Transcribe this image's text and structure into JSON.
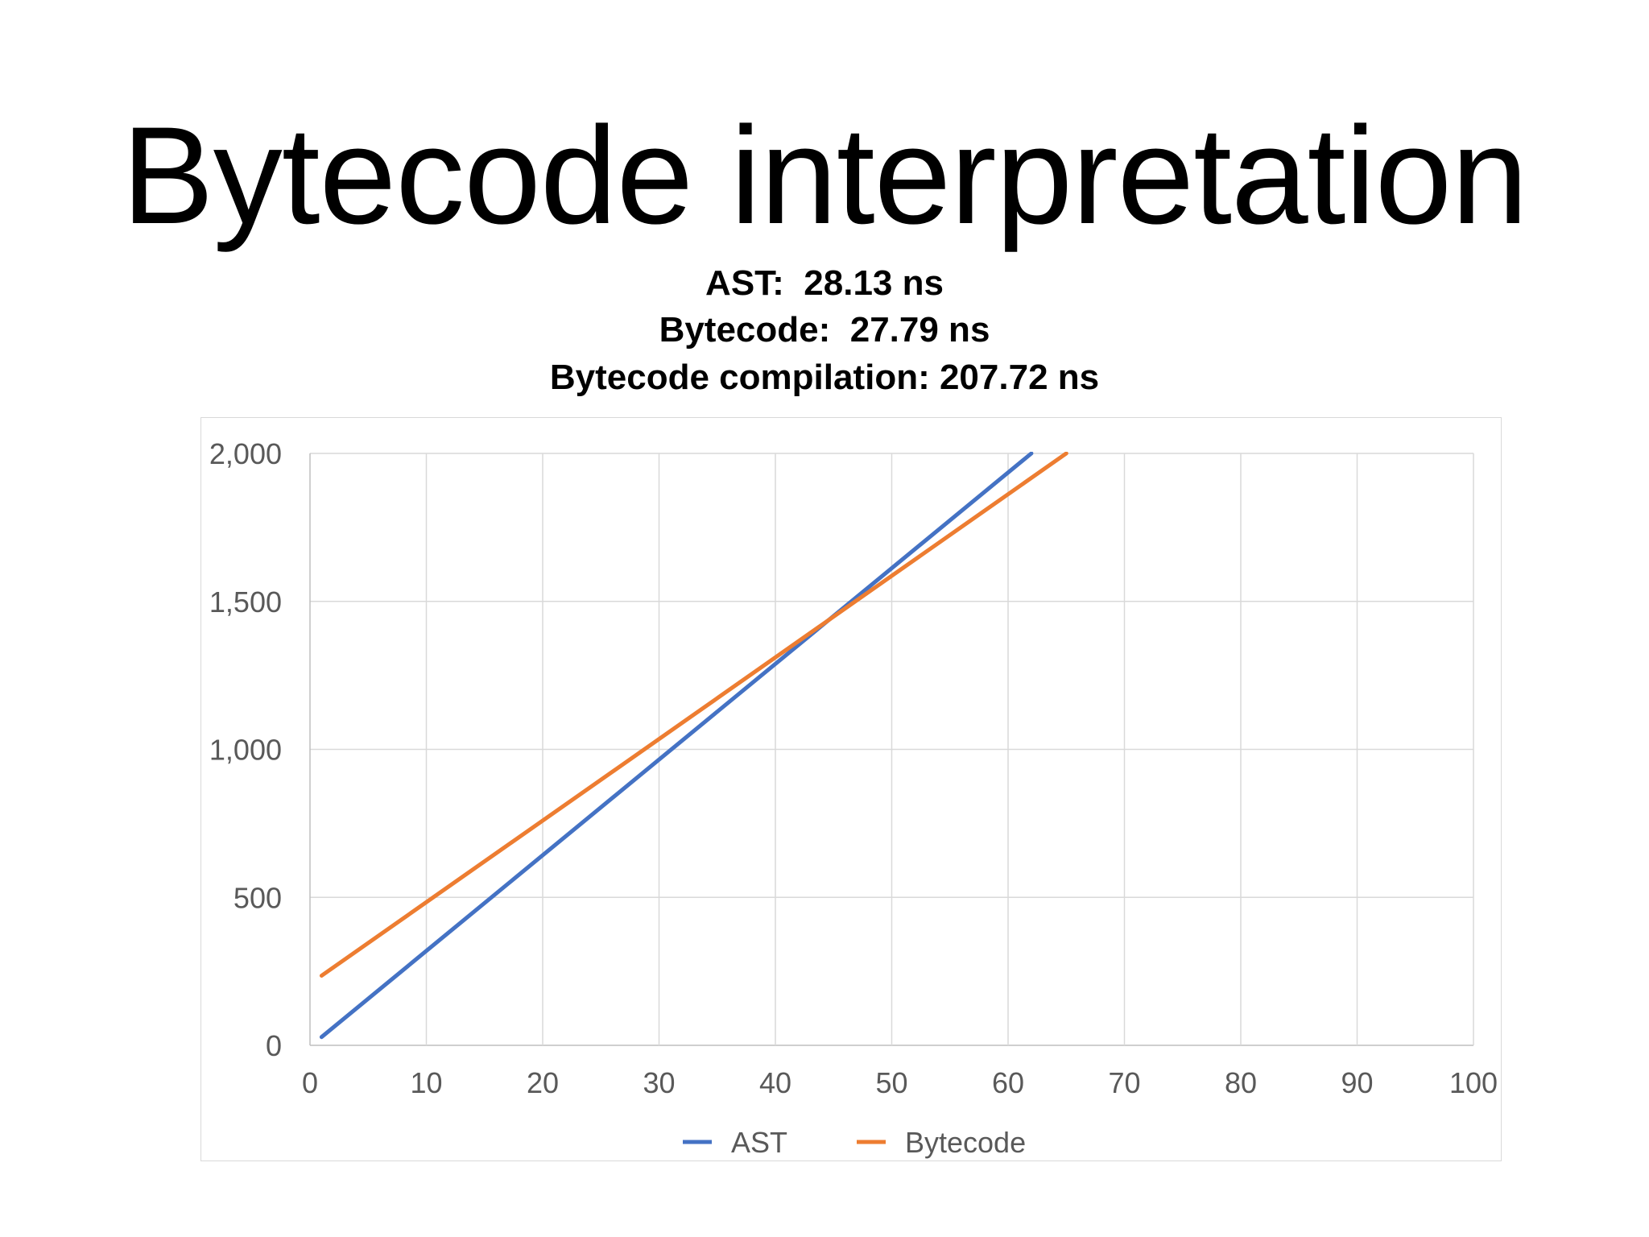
{
  "slide": {
    "title": "Bytecode interpretation",
    "subtitle_lines": [
      "AST:  28.13 ns",
      "Bytecode:  27.79 ns",
      "Bytecode compilation: 207.72 ns"
    ]
  },
  "chart_data": {
    "type": "line",
    "title": "",
    "xlabel": "",
    "ylabel": "",
    "xlim": [
      0,
      100
    ],
    "ylim": [
      0,
      2000
    ],
    "x_ticks": [
      0,
      10,
      20,
      30,
      40,
      50,
      60,
      70,
      80,
      90,
      100
    ],
    "y_ticks": [
      0,
      500,
      1000,
      1500,
      2000
    ],
    "x_tick_labels": [
      "0",
      "10",
      "20",
      "30",
      "40",
      "50",
      "60",
      "70",
      "80",
      "90",
      "100"
    ],
    "y_tick_labels": [
      "0",
      "500",
      "1,000",
      "1,500",
      "2,000"
    ],
    "grid": true,
    "legend_position": "bottom",
    "series": [
      {
        "name": "AST",
        "color": "#4472C4",
        "x": [
          1,
          62
        ],
        "y": [
          28.13,
          2000
        ]
      },
      {
        "name": "Bytecode",
        "color": "#ED7D31",
        "x": [
          1,
          65
        ],
        "y": [
          235.51,
          2000
        ]
      }
    ]
  }
}
